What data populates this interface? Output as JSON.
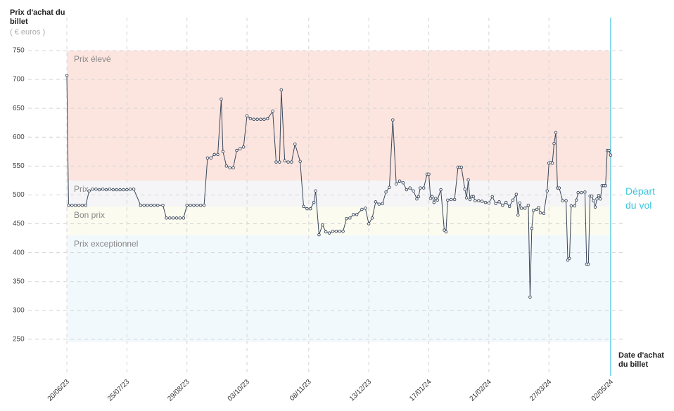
{
  "chart_data": {
    "type": "line",
    "y_title": "Prix d'achat du billet",
    "y_unit": "( € euros )",
    "x_title": "Date d'achat du billet",
    "xlim": [
      "2023-06-20",
      "2024-05-02"
    ],
    "xticks": [
      {
        "value": "2023-06-20",
        "label": "20/06/23"
      },
      {
        "value": "2023-07-25",
        "label": "25/07/23"
      },
      {
        "value": "2023-08-29",
        "label": "29/08/23"
      },
      {
        "value": "2023-10-03",
        "label": "03/10/23"
      },
      {
        "value": "2023-11-08",
        "label": "08/11/23"
      },
      {
        "value": "2023-12-13",
        "label": "13/12/23"
      },
      {
        "value": "2024-01-17",
        "label": "17/01/24"
      },
      {
        "value": "2024-02-21",
        "label": "21/02/24"
      },
      {
        "value": "2024-03-27",
        "label": "27/03/24"
      },
      {
        "value": "2024-05-02",
        "label": "02/05/24"
      }
    ],
    "ylim": [
      245,
      750
    ],
    "yticks": [
      250,
      300,
      350,
      400,
      450,
      500,
      550,
      600,
      650,
      700,
      750
    ],
    "grid": true,
    "bands": [
      {
        "name": "Prix élevé",
        "from": 525,
        "to": 750,
        "color": "#fde5df"
      },
      {
        "name": "Prix",
        "from": 480,
        "to": 525,
        "color": "#f5f5f7"
      },
      {
        "name": "Bon prix",
        "from": 430,
        "to": 480,
        "color": "#fbfbef"
      },
      {
        "name": "Prix exceptionnel",
        "from": 245,
        "to": 430,
        "color": "#f2f9fd"
      }
    ],
    "annotation": {
      "x": "2024-05-02",
      "text": "Départ du vol",
      "color": "#3cc6dc"
    },
    "color": "#3a475a",
    "x": [
      "2023-06-20",
      "2023-06-21",
      "2023-06-23",
      "2023-06-25",
      "2023-06-27",
      "2023-06-29",
      "2023-07-01",
      "2023-07-03",
      "2023-07-05",
      "2023-07-07",
      "2023-07-09",
      "2023-07-11",
      "2023-07-13",
      "2023-07-15",
      "2023-07-17",
      "2023-07-19",
      "2023-07-21",
      "2023-07-23",
      "2023-07-25",
      "2023-07-27",
      "2023-07-29",
      "2023-08-02",
      "2023-08-04",
      "2023-08-06",
      "2023-08-08",
      "2023-08-10",
      "2023-08-12",
      "2023-08-15",
      "2023-08-17",
      "2023-08-19",
      "2023-08-21",
      "2023-08-23",
      "2023-08-25",
      "2023-08-27",
      "2023-08-29",
      "2023-08-31",
      "2023-09-02",
      "2023-09-04",
      "2023-09-06",
      "2023-09-08",
      "2023-09-10",
      "2023-09-12",
      "2023-09-14",
      "2023-09-16",
      "2023-09-18",
      "2023-09-19",
      "2023-09-21",
      "2023-09-23",
      "2023-09-25",
      "2023-09-27",
      "2023-09-29",
      "2023-10-01",
      "2023-10-03",
      "2023-10-05",
      "2023-10-07",
      "2023-10-09",
      "2023-10-11",
      "2023-10-13",
      "2023-10-15",
      "2023-10-18",
      "2023-10-20",
      "2023-10-22",
      "2023-10-23",
      "2023-10-25",
      "2023-10-27",
      "2023-10-29",
      "2023-10-31",
      "2023-11-03",
      "2023-11-05",
      "2023-11-07",
      "2023-11-09",
      "2023-11-11",
      "2023-11-12",
      "2023-11-14",
      "2023-11-16",
      "2023-11-18",
      "2023-11-20",
      "2023-11-22",
      "2023-11-24",
      "2023-11-26",
      "2023-11-28",
      "2023-11-30",
      "2023-12-02",
      "2023-12-04",
      "2023-12-06",
      "2023-12-09",
      "2023-12-11",
      "2023-12-13",
      "2023-12-15",
      "2023-12-17",
      "2023-12-19",
      "2023-12-21",
      "2023-12-23",
      "2023-12-25",
      "2023-12-27",
      "2023-12-29",
      "2023-12-31",
      "2024-01-02",
      "2024-01-04",
      "2024-01-06",
      "2024-01-08",
      "2024-01-10",
      "2024-01-11",
      "2024-01-12",
      "2024-01-14",
      "2024-01-16",
      "2024-01-17",
      "2024-01-18",
      "2024-01-19",
      "2024-01-20",
      "2024-01-21",
      "2024-01-22",
      "2024-01-24",
      "2024-01-26",
      "2024-01-27",
      "2024-01-28",
      "2024-01-30",
      "2024-02-01",
      "2024-02-03",
      "2024-02-04",
      "2024-02-05",
      "2024-02-07",
      "2024-02-08",
      "2024-02-09",
      "2024-02-10",
      "2024-02-11",
      "2024-02-12",
      "2024-02-13",
      "2024-02-15",
      "2024-02-17",
      "2024-02-19",
      "2024-02-21",
      "2024-02-23",
      "2024-02-25",
      "2024-02-27",
      "2024-02-29",
      "2024-03-02",
      "2024-03-04",
      "2024-03-06",
      "2024-03-08",
      "2024-03-09",
      "2024-03-10",
      "2024-03-11",
      "2024-03-13",
      "2024-03-15",
      "2024-03-16",
      "2024-03-17",
      "2024-03-18",
      "2024-03-20",
      "2024-03-21",
      "2024-03-22",
      "2024-03-24",
      "2024-03-26",
      "2024-03-27",
      "2024-03-28",
      "2024-03-29",
      "2024-03-30",
      "2024-03-31",
      "2024-04-01",
      "2024-04-02",
      "2024-04-04",
      "2024-04-06",
      "2024-04-07",
      "2024-04-08",
      "2024-04-09",
      "2024-04-11",
      "2024-04-12",
      "2024-04-13",
      "2024-04-15",
      "2024-04-17",
      "2024-04-18",
      "2024-04-19",
      "2024-04-20",
      "2024-04-21",
      "2024-04-22",
      "2024-04-23",
      "2024-04-24",
      "2024-04-25",
      "2024-04-26",
      "2024-04-27",
      "2024-04-28",
      "2024-04-29",
      "2024-04-30",
      "2024-05-01",
      "2024-05-02"
    ],
    "values": [
      707,
      482,
      482,
      482,
      482,
      482,
      482,
      507,
      510,
      510,
      509,
      510,
      509,
      510,
      509,
      509,
      509,
      509,
      509,
      510,
      510,
      482,
      482,
      482,
      482,
      482,
      482,
      482,
      460,
      460,
      460,
      460,
      460,
      460,
      482,
      482,
      482,
      482,
      482,
      482,
      564,
      564,
      570,
      570,
      666,
      575,
      550,
      547,
      547,
      577,
      580,
      583,
      637,
      632,
      631,
      631,
      631,
      631,
      632,
      645,
      557,
      557,
      682,
      559,
      557,
      557,
      588,
      558,
      480,
      476,
      476,
      487,
      507,
      431,
      448,
      436,
      434,
      437,
      437,
      437,
      437,
      459,
      460,
      466,
      466,
      475,
      477,
      450,
      460,
      488,
      484,
      485,
      505,
      513,
      630,
      519,
      524,
      521,
      509,
      512,
      507,
      493,
      497,
      512,
      512,
      536,
      536,
      494,
      497,
      487,
      494,
      491,
      509,
      439,
      436,
      491,
      492,
      492,
      548,
      548,
      548,
      510,
      495,
      526,
      492,
      497,
      497,
      490,
      490,
      489,
      487,
      486,
      497,
      485,
      488,
      482,
      487,
      480,
      491,
      501,
      465,
      486,
      477,
      477,
      482,
      323,
      442,
      473,
      475,
      478,
      469,
      468,
      507,
      555,
      556,
      555,
      589,
      608,
      512,
      512,
      490,
      490,
      387,
      390,
      481,
      481,
      491,
      504,
      504,
      505,
      380,
      380,
      498,
      498,
      490,
      479,
      493,
      499,
      493,
      516,
      516,
      516,
      577,
      577,
      569
    ]
  }
}
